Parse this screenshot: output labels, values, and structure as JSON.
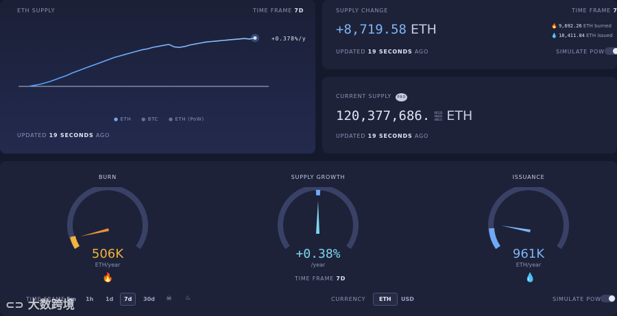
{
  "supply_chart": {
    "title": "ETH SUPPLY",
    "timeframe_label": "TIME FRAME",
    "timeframe_value": "7d",
    "rate": "+0.378%/y",
    "legend": [
      "ETH",
      "BTC",
      "ETH (PoW)"
    ],
    "updated_prefix": "UPDATED",
    "updated_value": "19 SECONDS",
    "updated_suffix": "AGO"
  },
  "chart_data": {
    "type": "line",
    "title": "",
    "xlabel": "",
    "ylabel": "",
    "series": [
      {
        "name": "ETH",
        "values": [
          0,
          2,
          4,
          7,
          10,
          14,
          18,
          22,
          27,
          31,
          35,
          39,
          43,
          47,
          51,
          55,
          59,
          62,
          65,
          68,
          71,
          74,
          76,
          79,
          81,
          83,
          85,
          80,
          79,
          81,
          84,
          86,
          88,
          90,
          91,
          92,
          93,
          94,
          95,
          96,
          97,
          96,
          98
        ]
      }
    ],
    "ylim": [
      0,
      100
    ],
    "grid": false
  },
  "supply_change": {
    "title": "SUPPLY CHANGE",
    "timeframe_label": "TIME FRAME",
    "timeframe_value": "7d",
    "value": "+8,719.58",
    "unit": "ETH",
    "burned": "9,692.26",
    "burned_label": "ETH burned",
    "issued": "18,411.84",
    "issued_label": "ETH issued",
    "updated_prefix": "UPDATED",
    "updated_value": "19 SECONDS",
    "updated_suffix": "AGO",
    "simulate_label": "SIMULATE PoW"
  },
  "current_supply": {
    "title": "CURRENT SUPPLY",
    "badge": "PRO",
    "value": "120,377,686.",
    "decimals": [
      "86326",
      "90465",
      "48631"
    ],
    "unit": "ETH",
    "updated_prefix": "UPDATED",
    "updated_value": "19 SECONDS",
    "updated_suffix": "AGO"
  },
  "gauges": {
    "burn": {
      "title": "BURN",
      "value": "506K",
      "unit": "ETH/year",
      "icon": "fire-icon",
      "level": 0.08,
      "color": "#f3b33d"
    },
    "growth": {
      "title": "SUPPLY GROWTH",
      "value": "+0.38%",
      "unit": "/year",
      "timeframe_label": "TIME FRAME",
      "timeframe_value": "7d",
      "level": 0.5,
      "color": "#7fd6f0"
    },
    "issuance": {
      "title": "ISSUANCE",
      "value": "961K",
      "unit": "ETH/year",
      "icon": "droplet-icon",
      "level": 0.12,
      "color": "#6fa8f5"
    }
  },
  "footer": {
    "timeframe_label": "TIME FRAME",
    "timeframes": [
      "5m",
      "1h",
      "1d",
      "7d",
      "30d"
    ],
    "active_timeframe": "7d",
    "currency_label": "CURRENCY",
    "currencies": [
      "ETH",
      "USD"
    ],
    "active_currency": "ETH",
    "simulate_label": "SIMULATE PoW",
    "watermark": "大数跨境"
  }
}
